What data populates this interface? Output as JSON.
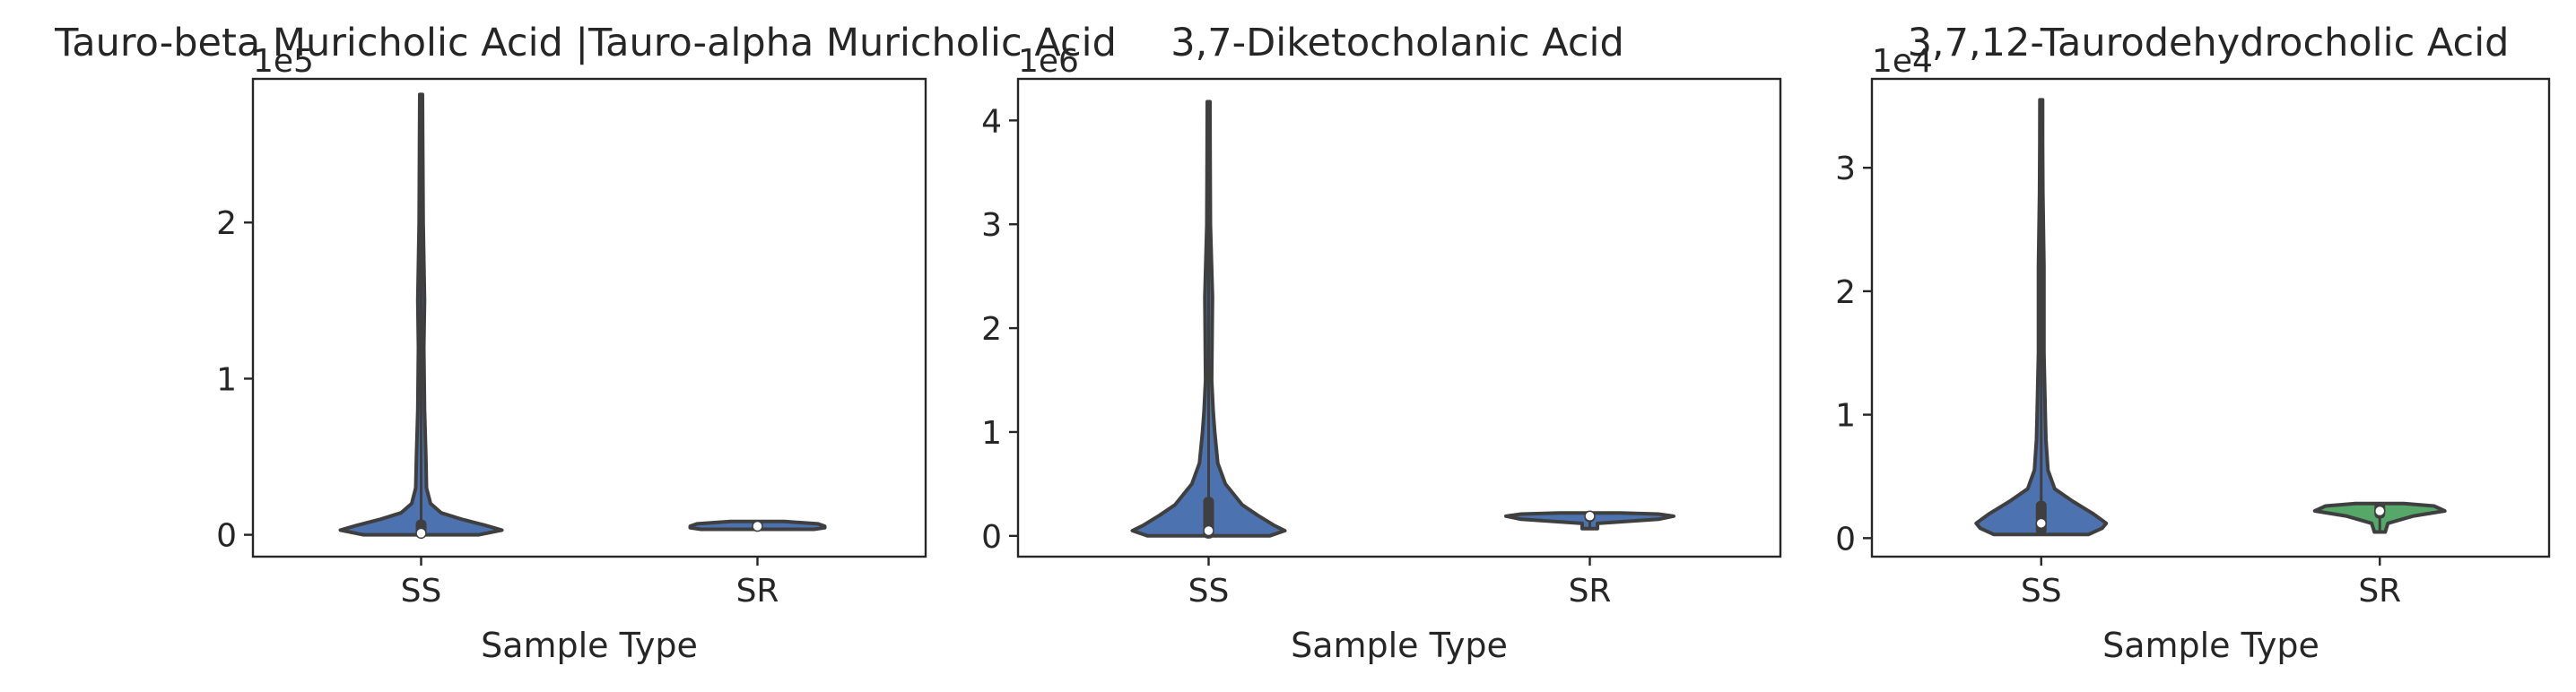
{
  "chart_data": [
    {
      "type": "violin",
      "title": "Tauro-beta Muricholic Acid |Tauro-alpha Muricholic Acid",
      "xlabel": "Sample Type",
      "ylabel": "",
      "offset_label": "1e5",
      "categories": [
        "SS",
        "SR"
      ],
      "ylim": [
        -0.14,
        2.92
      ],
      "yticks": [
        0,
        1,
        2
      ],
      "ytick_labels": [
        "0",
        "1",
        "2"
      ],
      "grid": false,
      "legend": "none",
      "violins": [
        {
          "category": "SS",
          "color": "#4c72b0",
          "extent": [
            0.0,
            2.82
          ],
          "quartiles": [
            0.0,
            0.02,
            0.08
          ],
          "median": 0.01,
          "density": [
            [
              0.0,
              0.43
            ],
            [
              0.03,
              0.6
            ],
            [
              0.06,
              0.48
            ],
            [
              0.1,
              0.3
            ],
            [
              0.14,
              0.15
            ],
            [
              0.2,
              0.07
            ],
            [
              0.3,
              0.04
            ],
            [
              0.5,
              0.035
            ],
            [
              0.8,
              0.025
            ],
            [
              1.2,
              0.02
            ],
            [
              1.5,
              0.025
            ],
            [
              2.0,
              0.015
            ],
            [
              2.5,
              0.012
            ],
            [
              2.82,
              0.008
            ]
          ]
        },
        {
          "category": "SR",
          "color": "#4c72b0",
          "extent": [
            0.035,
            0.085
          ],
          "quartiles": [
            0.045,
            0.055,
            0.075
          ],
          "median": 0.055,
          "density": [
            [
              0.035,
              0.42
            ],
            [
              0.045,
              0.5
            ],
            [
              0.055,
              0.5
            ],
            [
              0.07,
              0.45
            ],
            [
              0.085,
              0.2
            ]
          ]
        }
      ]
    },
    {
      "type": "violin",
      "title": "3,7-Diketocholanic Acid",
      "xlabel": "Sample Type",
      "ylabel": "",
      "offset_label": "1e6",
      "categories": [
        "SS",
        "SR"
      ],
      "ylim": [
        -0.2,
        4.4
      ],
      "yticks": [
        0,
        1,
        2,
        3,
        4
      ],
      "ytick_labels": [
        "0",
        "1",
        "2",
        "3",
        "4"
      ],
      "grid": false,
      "legend": "none",
      "violins": [
        {
          "category": "SS",
          "color": "#4c72b0",
          "extent": [
            0.0,
            4.18
          ],
          "quartiles": [
            0.0,
            0.05,
            0.35
          ],
          "median": 0.05,
          "density": [
            [
              0.0,
              0.4
            ],
            [
              0.05,
              0.5
            ],
            [
              0.1,
              0.43
            ],
            [
              0.2,
              0.32
            ],
            [
              0.3,
              0.22
            ],
            [
              0.5,
              0.11
            ],
            [
              0.7,
              0.06
            ],
            [
              1.0,
              0.04
            ],
            [
              1.2,
              0.03
            ],
            [
              1.5,
              0.02
            ],
            [
              2.3,
              0.025
            ],
            [
              3.0,
              0.012
            ],
            [
              3.6,
              0.01
            ],
            [
              4.18,
              0.008
            ]
          ]
        },
        {
          "category": "SR",
          "color": "#4c72b0",
          "extent": [
            0.07,
            0.22
          ],
          "quartiles": [
            0.16,
            0.19,
            0.2
          ],
          "median": 0.19,
          "density": [
            [
              0.07,
              0.05
            ],
            [
              0.12,
              0.05
            ],
            [
              0.16,
              0.45
            ],
            [
              0.19,
              0.55
            ],
            [
              0.21,
              0.45
            ],
            [
              0.22,
              0.2
            ]
          ]
        }
      ]
    },
    {
      "type": "violin",
      "title": "3,7,12-Taurodehydrocholic Acid",
      "xlabel": "Sample Type",
      "ylabel": "",
      "offset_label": "1e4",
      "categories": [
        "SS",
        "SR"
      ],
      "ylim": [
        -0.15,
        3.72
      ],
      "yticks": [
        0,
        1,
        2,
        3
      ],
      "ytick_labels": [
        "0",
        "1",
        "2",
        "3"
      ],
      "grid": false,
      "legend": "none",
      "violins": [
        {
          "category": "SS",
          "color": "#4c72b0",
          "extent": [
            0.03,
            3.55
          ],
          "quartiles": [
            0.05,
            0.12,
            0.28
          ],
          "median": 0.12,
          "density": [
            [
              0.03,
              0.35
            ],
            [
              0.08,
              0.45
            ],
            [
              0.12,
              0.48
            ],
            [
              0.2,
              0.38
            ],
            [
              0.3,
              0.23
            ],
            [
              0.4,
              0.1
            ],
            [
              0.55,
              0.05
            ],
            [
              0.8,
              0.035
            ],
            [
              1.0,
              0.03
            ],
            [
              1.5,
              0.02
            ],
            [
              2.2,
              0.02
            ],
            [
              2.8,
              0.012
            ],
            [
              3.2,
              0.01
            ],
            [
              3.55,
              0.006
            ]
          ]
        },
        {
          "category": "SR",
          "color": "#55a868",
          "extent": [
            0.05,
            0.28
          ],
          "quartiles": [
            0.18,
            0.22,
            0.27
          ],
          "median": 0.22,
          "density": [
            [
              0.05,
              0.04
            ],
            [
              0.12,
              0.06
            ],
            [
              0.18,
              0.25
            ],
            [
              0.22,
              0.48
            ],
            [
              0.26,
              0.4
            ],
            [
              0.28,
              0.18
            ]
          ]
        }
      ]
    }
  ]
}
